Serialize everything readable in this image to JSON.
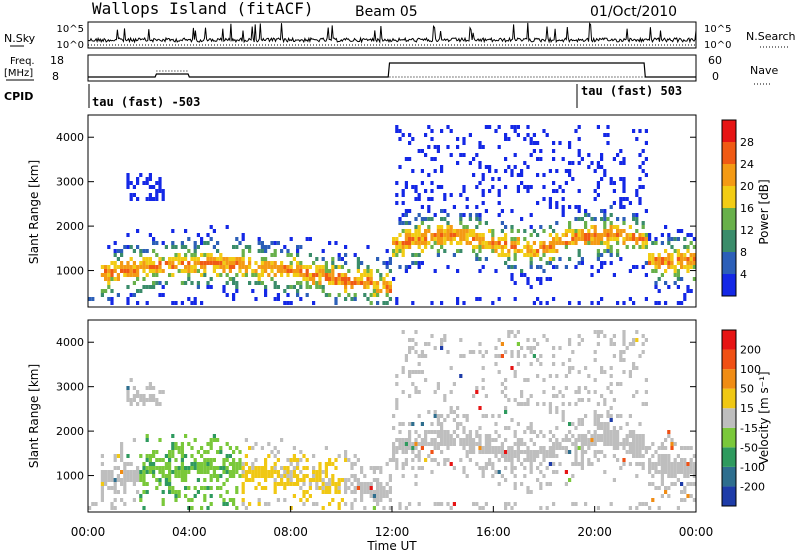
{
  "header": {
    "site": "Wallops Island (fitACF)",
    "beam": "Beam 05",
    "date": "01/Oct/2010"
  },
  "noise_panel": {
    "left_label": "N.Sky",
    "right_label": "N.Search",
    "ticks_left": [
      "10^5",
      "10^0"
    ],
    "ticks_right": [
      "10^5",
      "10^0"
    ]
  },
  "freq_panel": {
    "left_label": "Freq.",
    "left_unit": "[MHz]",
    "left_ticks": [
      "18",
      "8"
    ],
    "right_label": "Nave",
    "right_ticks": [
      "60",
      "0"
    ]
  },
  "cpid_panel": {
    "label": "CPID",
    "modes": [
      {
        "text": "tau (fast) -503",
        "start_hour": 0
      },
      {
        "text": "tau (fast) 503",
        "start_hour": 19.2
      }
    ]
  },
  "chart_data": [
    {
      "type": "heatmap",
      "title": "",
      "ylabel": "Slant Range [km]",
      "xlabel": "",
      "ylim": [
        180,
        4500
      ],
      "yticks": [
        "1000",
        "2000",
        "3000",
        "4000"
      ],
      "colorbar": {
        "label": "Power [dB]",
        "ticks": [
          "4",
          "8",
          "12",
          "16",
          "20",
          "24",
          "28"
        ],
        "colors": [
          "#1428e6",
          "#2c5fb8",
          "#3a8c6a",
          "#68b04a",
          "#f2cc14",
          "#f49a14",
          "#f05a14",
          "#e61414"
        ]
      }
    },
    {
      "type": "heatmap",
      "title": "",
      "ylabel": "Slant Range [km]",
      "xlabel": "Time UT",
      "ylim": [
        180,
        4500
      ],
      "yticks": [
        "1000",
        "2000",
        "3000",
        "4000"
      ],
      "xticks": [
        "00:00",
        "04:00",
        "08:00",
        "12:00",
        "16:00",
        "20:00",
        "00:00"
      ],
      "colorbar": {
        "label": "Velocity [m s⁻¹]",
        "ticks": [
          "200",
          "100",
          "50",
          "15",
          "-15",
          "-50",
          "-100",
          "-200"
        ],
        "colors": [
          "#1e3ca8",
          "#2e6e8e",
          "#2e9a5e",
          "#7ac83a",
          "#bebebe",
          "#f0c814",
          "#f08c14",
          "#f05014",
          "#e61414"
        ]
      }
    }
  ]
}
